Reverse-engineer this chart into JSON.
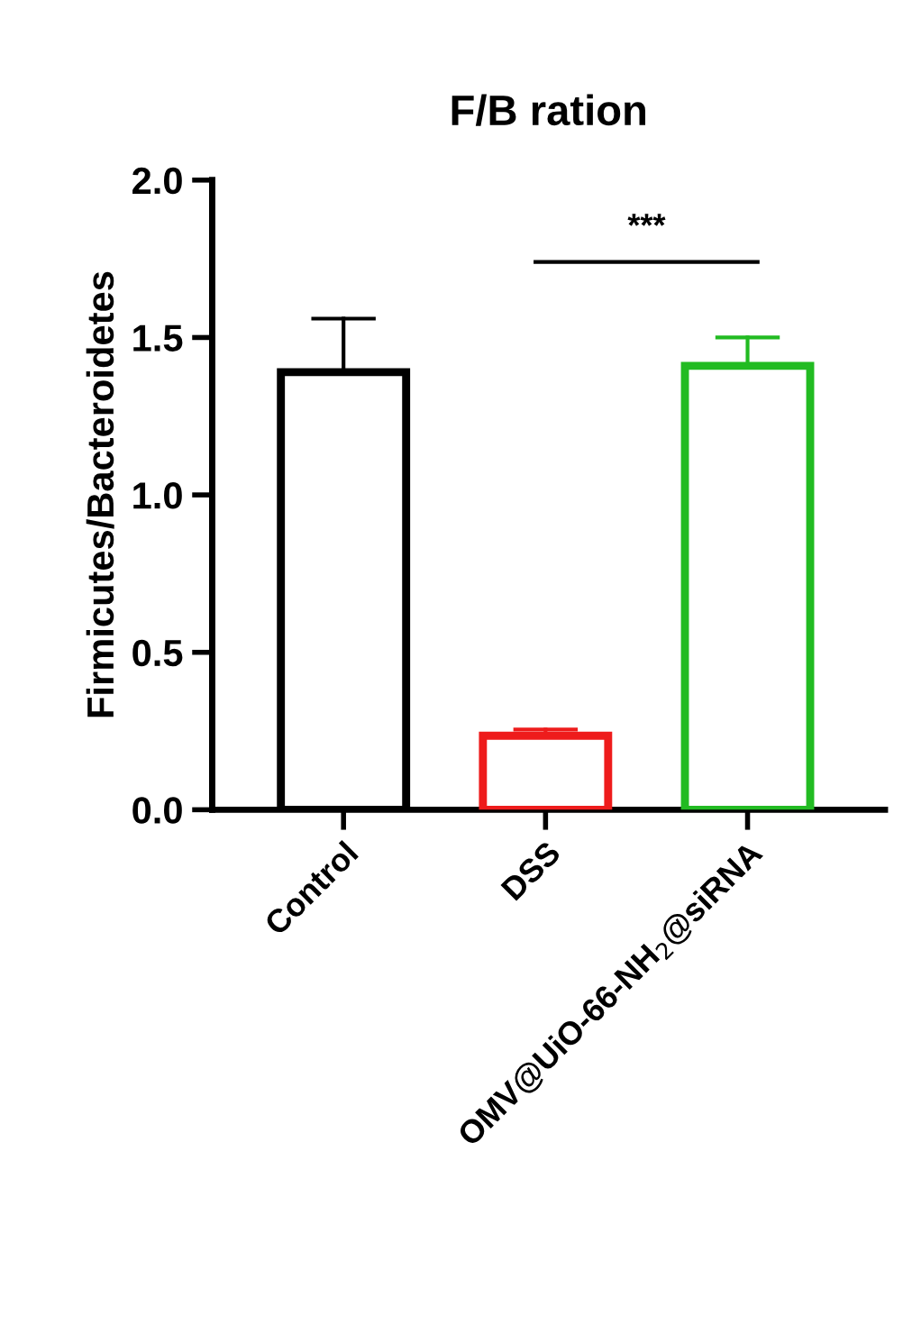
{
  "chart_data": {
    "type": "bar",
    "title": "F/B ration",
    "ylabel": "Firmicutes/Bacteroidetes",
    "categories": [
      "Control",
      "DSS",
      "OMV@UiO-66-NH$_{2}$@siRNA"
    ],
    "values": [
      1.39,
      0.235,
      1.41
    ],
    "colors": [
      "#000000",
      "#ee1c1c",
      "#22bb22"
    ],
    "errors": [
      0.17,
      0.02,
      0.09
    ],
    "ylim": [
      0,
      2.0
    ],
    "yticks": [
      {
        "value": 0,
        "label": "0.0"
      },
      0.5,
      {
        "value": 1,
        "label": "1.0"
      },
      1.5,
      {
        "value": 2,
        "label": "2.0"
      }
    ],
    "annotations": [
      "***"
    ],
    "grid": false,
    "legend": false
  }
}
